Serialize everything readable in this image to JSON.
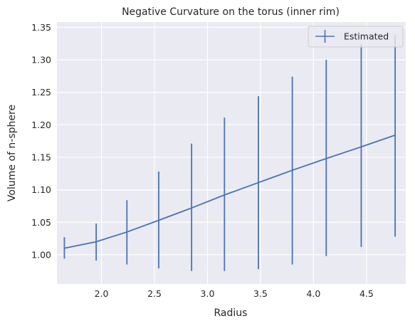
{
  "chart_data": {
    "type": "line",
    "title": "Negative Curvature on the torus (inner rim)",
    "xlabel": "Radius",
    "ylabel": "Volume of n-sphere",
    "xlim": [
      1.58,
      4.87
    ],
    "ylim": [
      0.955,
      1.358
    ],
    "xticks": [
      2.0,
      2.5,
      3.0,
      3.5,
      4.0,
      4.5
    ],
    "xtick_labels": [
      "2.0",
      "2.5",
      "3.0",
      "3.5",
      "4.0",
      "4.5"
    ],
    "yticks": [
      1.0,
      1.05,
      1.1,
      1.15,
      1.2,
      1.25,
      1.3,
      1.35
    ],
    "ytick_labels": [
      "1.00",
      "1.05",
      "1.10",
      "1.15",
      "1.20",
      "1.25",
      "1.30",
      "1.35"
    ],
    "grid": true,
    "legend_position": "top-right",
    "series": [
      {
        "name": "Estimated",
        "color": "#4c72b0",
        "x": [
          1.65,
          1.95,
          2.24,
          2.54,
          2.85,
          3.16,
          3.48,
          3.8,
          4.12,
          4.45,
          4.77
        ],
        "y": [
          1.01,
          1.02,
          1.035,
          1.053,
          1.072,
          1.092,
          1.111,
          1.13,
          1.148,
          1.166,
          1.184
        ],
        "yerr_low": [
          0.994,
          0.991,
          0.985,
          0.979,
          0.975,
          0.975,
          0.978,
          0.985,
          0.998,
          1.012,
          1.028
        ],
        "yerr_high": [
          1.027,
          1.048,
          1.084,
          1.128,
          1.171,
          1.211,
          1.244,
          1.274,
          1.3,
          1.324,
          1.338
        ]
      }
    ]
  },
  "colors": {
    "plot_background": "#eaeaf2",
    "grid": "#ffffff",
    "line": "#4c72b0"
  }
}
